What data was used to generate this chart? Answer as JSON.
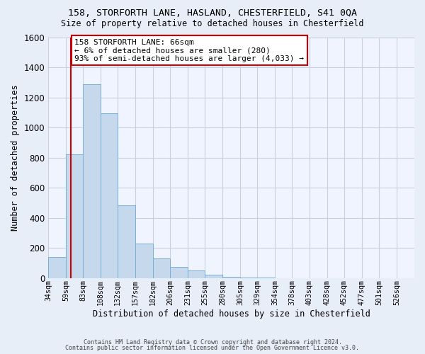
{
  "title1": "158, STORFORTH LANE, HASLAND, CHESTERFIELD, S41 0QA",
  "title2": "Size of property relative to detached houses in Chesterfield",
  "xlabel": "Distribution of detached houses by size in Chesterfield",
  "ylabel": "Number of detached properties",
  "bar_color": "#c6d9ec",
  "bar_edge_color": "#7bafd4",
  "bin_labels": [
    "34sqm",
    "59sqm",
    "83sqm",
    "108sqm",
    "132sqm",
    "157sqm",
    "182sqm",
    "206sqm",
    "231sqm",
    "255sqm",
    "280sqm",
    "305sqm",
    "329sqm",
    "354sqm",
    "378sqm",
    "403sqm",
    "428sqm",
    "452sqm",
    "477sqm",
    "501sqm",
    "526sqm"
  ],
  "bar_values": [
    140,
    820,
    1285,
    1095,
    485,
    230,
    130,
    75,
    48,
    22,
    10,
    5,
    2,
    0,
    0,
    0,
    0,
    0,
    0,
    0,
    0
  ],
  "ylim": [
    0,
    1600
  ],
  "yticks": [
    0,
    200,
    400,
    600,
    800,
    1000,
    1200,
    1400,
    1600
  ],
  "property_line_x": 66,
  "property_line_label": "158 STORFORTH LANE: 66sqm",
  "annotation_line1": "← 6% of detached houses are smaller (280)",
  "annotation_line2": "93% of semi-detached houses are larger (4,033) →",
  "annotation_box_color": "#ffffff",
  "annotation_box_edge": "#cc0000",
  "vline_color": "#cc0000",
  "footer1": "Contains HM Land Registry data © Crown copyright and database right 2024.",
  "footer2": "Contains public sector information licensed under the Open Government Licence v3.0.",
  "bg_color": "#e8eef8",
  "plot_bg_color": "#f0f4ff",
  "grid_color": "#c8d0e0",
  "bin_edges": [
    34,
    59,
    83,
    108,
    132,
    157,
    182,
    206,
    231,
    255,
    280,
    305,
    329,
    354,
    378,
    403,
    428,
    452,
    477,
    501,
    526,
    551
  ]
}
